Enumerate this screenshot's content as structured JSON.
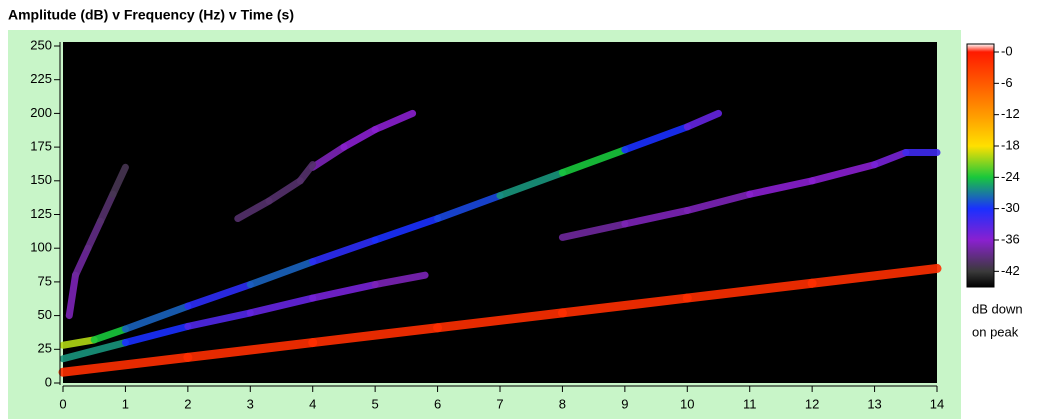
{
  "chart_data": {
    "type": "spectrogram",
    "title": "Amplitude (dB) v Frequency (Hz) v Time (s)",
    "xlim": [
      0,
      14
    ],
    "xticks": [
      0,
      1,
      2,
      3,
      4,
      5,
      6,
      7,
      8,
      9,
      10,
      11,
      12,
      13,
      14
    ],
    "ylim": [
      0,
      250
    ],
    "yticks": [
      0,
      25,
      50,
      75,
      100,
      125,
      150,
      175,
      200,
      225,
      250
    ],
    "zlim": [
      -45,
      0
    ],
    "zticks": [
      {
        "value": 0,
        "label": "-0"
      },
      -6,
      -12,
      -18,
      -24,
      -30,
      -36,
      -42
    ],
    "zcolors": [
      "#ff1a00",
      "#ff5a00",
      "#ff9a00",
      "#ffe000",
      "#19c83c",
      "#1a30ff",
      "#8a20d0",
      "#3a3a3a"
    ],
    "colorbar_label": [
      "dB down",
      "on peak"
    ],
    "background": "#000000",
    "ridges": [
      {
        "x": [
          0,
          2,
          4,
          6,
          8,
          10,
          12,
          14
        ],
        "y": [
          8,
          19,
          30,
          41,
          52,
          63,
          74,
          85
        ],
        "db": [
          -2,
          -2,
          -2,
          -2,
          -2,
          -2,
          -2,
          -2
        ]
      },
      {
        "x": [
          0,
          0.5,
          1,
          2,
          3,
          4,
          5,
          6,
          7,
          8,
          9,
          10,
          10.5
        ],
        "y": [
          28,
          32,
          40,
          57,
          73,
          90,
          106,
          122,
          139,
          156,
          173,
          190,
          200
        ],
        "db": [
          -20,
          -24,
          -28,
          -31,
          -28,
          -31,
          -30,
          -29,
          -26,
          -24,
          -30,
          -34,
          -38
        ]
      },
      {
        "x": [
          0,
          1,
          2,
          3,
          4,
          5,
          5.8
        ],
        "y": [
          18,
          30,
          42,
          52,
          63,
          73,
          80
        ],
        "db": [
          -26,
          -30,
          -33,
          -34,
          -35,
          -37,
          -38
        ]
      },
      {
        "x": [
          8,
          9,
          10,
          11,
          12,
          13,
          13.5,
          14
        ],
        "y": [
          108,
          118,
          128,
          140,
          150,
          162,
          171,
          171
        ],
        "db": [
          -38,
          -37,
          -37,
          -36,
          -36,
          -35,
          -32,
          -33
        ]
      },
      {
        "x": [
          4,
          4.5,
          5,
          5.6
        ],
        "y": [
          160,
          175,
          188,
          200
        ],
        "db": [
          -37,
          -36,
          -36,
          -38
        ]
      },
      {
        "x": [
          2.8,
          3.3,
          3.8,
          4.0
        ],
        "y": [
          122,
          135,
          150,
          162
        ],
        "db": [
          -40,
          -40,
          -40,
          -41
        ]
      },
      {
        "x": [
          0.1,
          0.2,
          0.4,
          0.6,
          0.8,
          1.0
        ],
        "y": [
          50,
          80,
          100,
          120,
          140,
          160
        ],
        "db": [
          -37,
          -38,
          -39,
          -40,
          -41,
          -42
        ]
      }
    ]
  }
}
